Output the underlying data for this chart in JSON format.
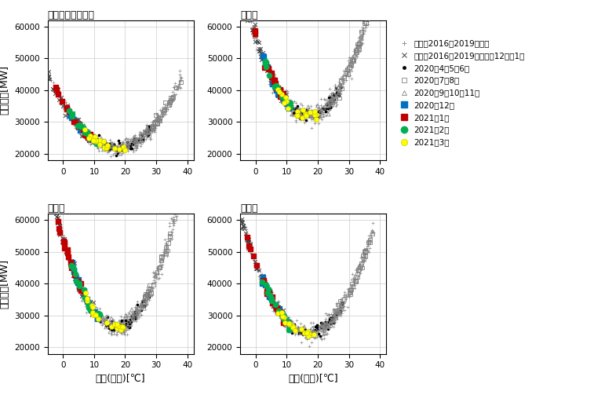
{
  "subplots": [
    "１時（前１時間）",
    "１５時",
    "１８時",
    "２１時"
  ],
  "xlabel": "気温(東京)[℃]",
  "ylabel": "需要実績[MW]",
  "xlim": [
    -5,
    42
  ],
  "ylim": [
    18000,
    62000
  ],
  "xticks": [
    0,
    10,
    20,
    30,
    40
  ],
  "yticks": [
    20000,
    30000,
    40000,
    50000,
    60000
  ],
  "legend_labels": [
    "過去（2016～2019年度）",
    "過去（2016～2019年度）の12月～1月",
    "2020年4月5月6月",
    "2020年7月8月",
    "2020年9月10月11月",
    "2020年12月",
    "2021年1月",
    "2021年2月",
    "2021年3月"
  ],
  "subplot_params": {
    "１時（前１時間）": {
      "base": 22000,
      "scale": 48,
      "shift": 17,
      "noise": 1200
    },
    "１５時": {
      "base": 32000,
      "scale": 85,
      "shift": 17,
      "noise": 1500
    },
    "１８時": {
      "base": 26500,
      "scale": 95,
      "shift": 17,
      "noise": 1400
    },
    "２１時": {
      "base": 24500,
      "scale": 75,
      "shift": 17,
      "noise": 1300
    }
  }
}
